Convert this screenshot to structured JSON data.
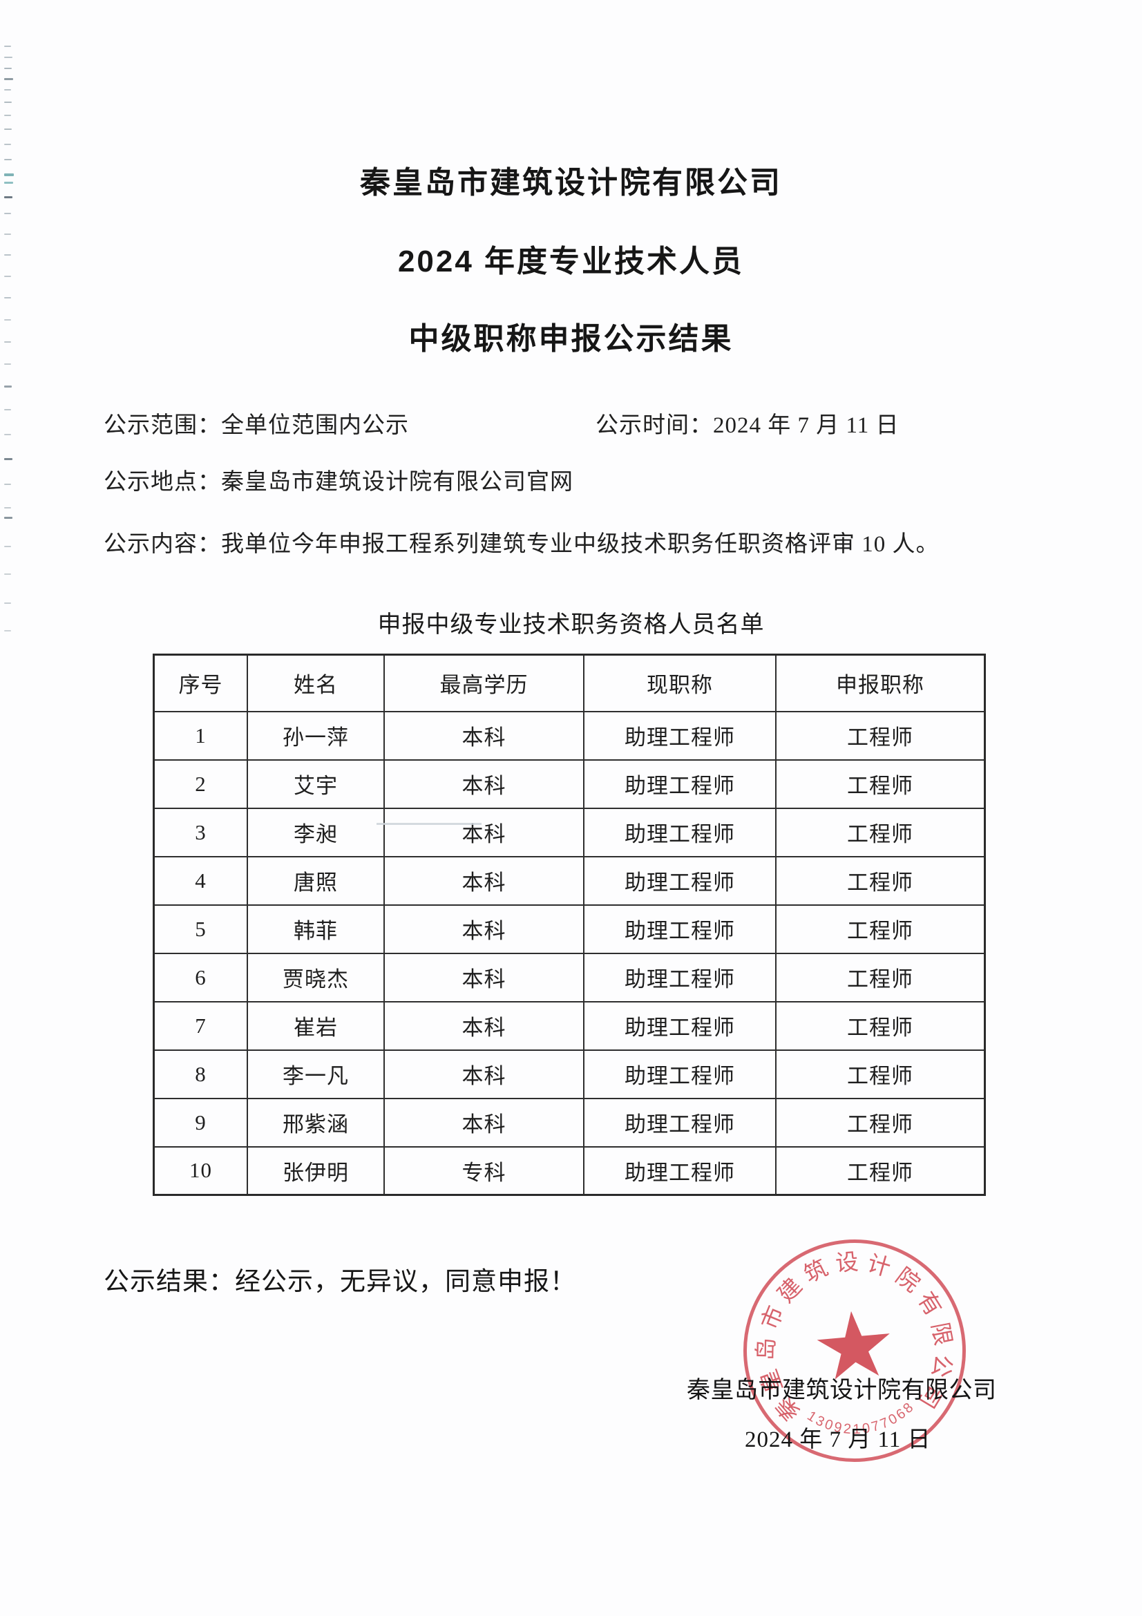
{
  "document": {
    "title_lines": [
      "秦皇岛市建筑设计院有限公司",
      "2024 年度专业技术人员",
      "中级职称申报公示结果"
    ],
    "info": {
      "scope_label": "公示范围：",
      "scope_value": "全单位范围内公示",
      "time_label": "公示时间：",
      "time_value": "2024 年 7 月 11 日",
      "place_label": "公示地点：",
      "place_value": "秦皇岛市建筑设计院有限公司官网",
      "content_label": "公示内容：",
      "content_value": "我单位今年申报工程系列建筑专业中级技术职务任职资格评审 10 人。"
    },
    "table": {
      "title": "申报中级专业技术职务资格人员名单",
      "headers": [
        "序号",
        "姓名",
        "最高学历",
        "现职称",
        "申报职称"
      ],
      "rows": [
        [
          "1",
          "孙一萍",
          "本科",
          "助理工程师",
          "工程师"
        ],
        [
          "2",
          "艾宇",
          "本科",
          "助理工程师",
          "工程师"
        ],
        [
          "3",
          "李昶",
          "本科",
          "助理工程师",
          "工程师"
        ],
        [
          "4",
          "唐照",
          "本科",
          "助理工程师",
          "工程师"
        ],
        [
          "5",
          "韩菲",
          "本科",
          "助理工程师",
          "工程师"
        ],
        [
          "6",
          "贾晓杰",
          "本科",
          "助理工程师",
          "工程师"
        ],
        [
          "7",
          "崔岩",
          "本科",
          "助理工程师",
          "工程师"
        ],
        [
          "8",
          "李一凡",
          "本科",
          "助理工程师",
          "工程师"
        ],
        [
          "9",
          "邢紫涵",
          "本科",
          "助理工程师",
          "工程师"
        ],
        [
          "10",
          "张伊明",
          "专科",
          "助理工程师",
          "工程师"
        ]
      ]
    },
    "result_line": "公示结果：经公示，无异议，同意申报！",
    "signature": {
      "company": "秦皇岛市建筑设计院有限公司",
      "date": "2024 年 7 月 11 日"
    },
    "stamp": {
      "ring_text": "秦皇岛市建筑设计院有限公司",
      "code_digits": "130921077068",
      "color": "#cb303c"
    }
  }
}
